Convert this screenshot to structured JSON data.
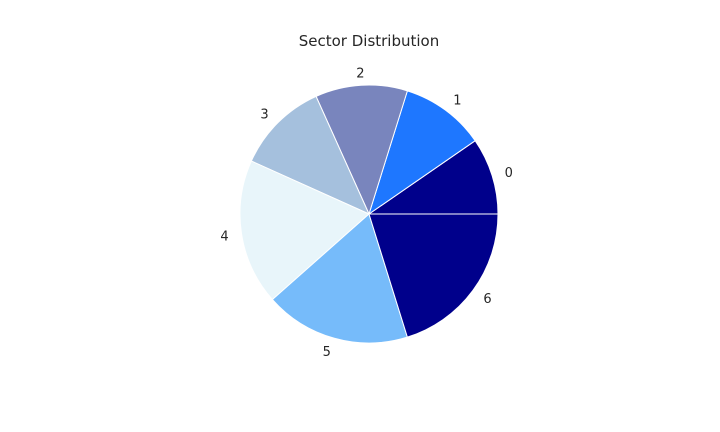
{
  "chart_data": {
    "type": "pie",
    "title": "Sector Distribution",
    "start_angle_deg": 0,
    "direction": "counterclockwise",
    "slices": [
      {
        "label": "0",
        "value": 10,
        "color": "#00008b"
      },
      {
        "label": "1",
        "value": 11,
        "color": "#1e77ff"
      },
      {
        "label": "2",
        "value": 12,
        "color": "#7985bd"
      },
      {
        "label": "3",
        "value": 12,
        "color": "#a5c0dd"
      },
      {
        "label": "4",
        "value": 19,
        "color": "#e8f5fa"
      },
      {
        "label": "5",
        "value": 19,
        "color": "#76bbfa"
      },
      {
        "label": "6",
        "value": 21,
        "color": "#00008b"
      }
    ],
    "legend": "none"
  }
}
